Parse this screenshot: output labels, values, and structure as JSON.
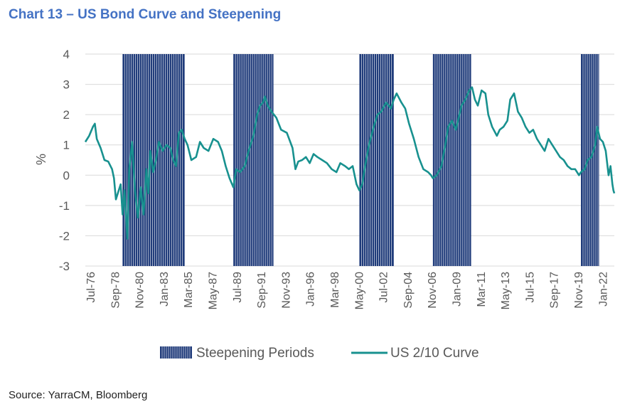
{
  "title": "Chart 13 – US Bond Curve and Steepening",
  "source": "Source: YarraCM, Bloomberg",
  "chart_data": {
    "type": "line",
    "ylabel": "%",
    "ylim": [
      -3,
      4
    ],
    "yticks": [
      "4",
      "3",
      "2",
      "1",
      "0",
      "-1",
      "-2",
      "-3"
    ],
    "x_tick_labels": [
      "Jul-76",
      "Sep-78",
      "Nov-80",
      "Jan-83",
      "Mar-85",
      "May-87",
      "Jul-89",
      "Sep-91",
      "Nov-93",
      "Jan-96",
      "Mar-98",
      "May-00",
      "Jul-02",
      "Sep-04",
      "Nov-06",
      "Jan-09",
      "Mar-11",
      "May-13",
      "Jul-15",
      "Sep-17",
      "Nov-19",
      "Jan-22"
    ],
    "x_range": [
      "1976-07",
      "2022-09"
    ],
    "grid": true,
    "legend_position": "bottom",
    "colors": {
      "line": "#18918f",
      "bars": "#1f3b7a",
      "title": "#4472c4"
    },
    "series": [
      {
        "name": "Steepening Periods",
        "type": "shaded-periods",
        "periods": [
          [
            "1979-10",
            "1985-03"
          ],
          [
            "1989-06",
            "1992-12"
          ],
          [
            "2000-06",
            "2003-06"
          ],
          [
            "2006-11",
            "2010-03"
          ],
          [
            "2019-10",
            "2021-05"
          ]
        ]
      },
      {
        "name": "US 2/10 Curve",
        "type": "line",
        "points": [
          [
            "1976-07",
            1.1
          ],
          [
            "1976-11",
            1.3
          ],
          [
            "1977-03",
            1.6
          ],
          [
            "1977-05",
            1.7
          ],
          [
            "1977-07",
            1.2
          ],
          [
            "1977-11",
            0.9
          ],
          [
            "1978-03",
            0.5
          ],
          [
            "1978-07",
            0.45
          ],
          [
            "1978-11",
            0.2
          ],
          [
            "1979-01",
            -0.1
          ],
          [
            "1979-03",
            -0.8
          ],
          [
            "1979-06",
            -0.5
          ],
          [
            "1979-08",
            -0.3
          ],
          [
            "1979-10",
            -1.3
          ],
          [
            "1979-12",
            -0.5
          ],
          [
            "1980-03",
            -2.1
          ],
          [
            "1980-05",
            0.2
          ],
          [
            "1980-08",
            1.1
          ],
          [
            "1980-11",
            -0.5
          ],
          [
            "1981-02",
            -1.4
          ],
          [
            "1981-05",
            -0.4
          ],
          [
            "1981-08",
            -1.3
          ],
          [
            "1981-11",
            0.2
          ],
          [
            "1982-01",
            -0.6
          ],
          [
            "1982-03",
            0.8
          ],
          [
            "1982-06",
            0.1
          ],
          [
            "1982-09",
            0.5
          ],
          [
            "1982-12",
            1.1
          ],
          [
            "1983-04",
            0.8
          ],
          [
            "1983-08",
            1.0
          ],
          [
            "1983-12",
            0.9
          ],
          [
            "1984-03",
            0.5
          ],
          [
            "1984-06",
            0.3
          ],
          [
            "1984-09",
            1.4
          ],
          [
            "1984-12",
            1.5
          ],
          [
            "1985-03",
            1.2
          ],
          [
            "1985-06",
            1.0
          ],
          [
            "1985-10",
            0.5
          ],
          [
            "1986-03",
            0.6
          ],
          [
            "1986-07",
            1.1
          ],
          [
            "1986-11",
            0.9
          ],
          [
            "1987-04",
            0.8
          ],
          [
            "1987-09",
            1.2
          ],
          [
            "1988-02",
            1.1
          ],
          [
            "1988-06",
            0.8
          ],
          [
            "1988-10",
            0.3
          ],
          [
            "1989-02",
            -0.1
          ],
          [
            "1989-06",
            -0.4
          ],
          [
            "1989-09",
            0.2
          ],
          [
            "1990-01",
            0.1
          ],
          [
            "1990-06",
            0.3
          ],
          [
            "1990-10",
            0.8
          ],
          [
            "1991-03",
            1.3
          ],
          [
            "1991-07",
            2.0
          ],
          [
            "1991-10",
            2.3
          ],
          [
            "1992-01",
            2.4
          ],
          [
            "1992-03",
            2.6
          ],
          [
            "1992-06",
            2.3
          ],
          [
            "1992-10",
            2.1
          ],
          [
            "1993-03",
            1.9
          ],
          [
            "1993-08",
            1.5
          ],
          [
            "1994-02",
            1.4
          ],
          [
            "1994-08",
            0.9
          ],
          [
            "1994-11",
            0.2
          ],
          [
            "1995-02",
            0.45
          ],
          [
            "1995-06",
            0.5
          ],
          [
            "1995-10",
            0.6
          ],
          [
            "1996-02",
            0.4
          ],
          [
            "1996-06",
            0.7
          ],
          [
            "1996-10",
            0.6
          ],
          [
            "1997-03",
            0.5
          ],
          [
            "1997-08",
            0.4
          ],
          [
            "1998-01",
            0.2
          ],
          [
            "1998-06",
            0.1
          ],
          [
            "1998-10",
            0.4
          ],
          [
            "1999-03",
            0.3
          ],
          [
            "1999-07",
            0.2
          ],
          [
            "1999-11",
            0.3
          ],
          [
            "2000-03",
            -0.3
          ],
          [
            "2000-06",
            -0.5
          ],
          [
            "2000-09",
            -0.3
          ],
          [
            "2000-12",
            0.3
          ],
          [
            "2001-04",
            1.0
          ],
          [
            "2001-09",
            1.6
          ],
          [
            "2002-01",
            2.0
          ],
          [
            "2002-05",
            2.1
          ],
          [
            "2002-10",
            2.4
          ],
          [
            "2003-03",
            2.2
          ],
          [
            "2003-06",
            2.5
          ],
          [
            "2003-09",
            2.7
          ],
          [
            "2004-02",
            2.4
          ],
          [
            "2004-06",
            2.2
          ],
          [
            "2004-10",
            1.7
          ],
          [
            "2005-03",
            1.2
          ],
          [
            "2005-08",
            0.6
          ],
          [
            "2006-01",
            0.2
          ],
          [
            "2006-06",
            0.1
          ],
          [
            "2006-09",
            0.0
          ],
          [
            "2006-11",
            -0.1
          ],
          [
            "2007-03",
            0.0
          ],
          [
            "2007-08",
            0.3
          ],
          [
            "2007-12",
            1.0
          ],
          [
            "2008-03",
            1.6
          ],
          [
            "2008-07",
            1.8
          ],
          [
            "2008-11",
            1.5
          ],
          [
            "2009-02",
            1.9
          ],
          [
            "2009-05",
            2.3
          ],
          [
            "2009-09",
            2.5
          ],
          [
            "2010-01",
            2.8
          ],
          [
            "2010-04",
            2.9
          ],
          [
            "2010-07",
            2.5
          ],
          [
            "2010-10",
            2.3
          ],
          [
            "2011-02",
            2.8
          ],
          [
            "2011-06",
            2.7
          ],
          [
            "2011-09",
            2.0
          ],
          [
            "2012-01",
            1.6
          ],
          [
            "2012-06",
            1.3
          ],
          [
            "2012-09",
            1.5
          ],
          [
            "2013-01",
            1.6
          ],
          [
            "2013-05",
            1.8
          ],
          [
            "2013-08",
            2.5
          ],
          [
            "2013-12",
            2.7
          ],
          [
            "2014-04",
            2.1
          ],
          [
            "2014-08",
            1.9
          ],
          [
            "2014-12",
            1.6
          ],
          [
            "2015-04",
            1.4
          ],
          [
            "2015-08",
            1.5
          ],
          [
            "2015-12",
            1.2
          ],
          [
            "2016-04",
            1.0
          ],
          [
            "2016-08",
            0.8
          ],
          [
            "2016-12",
            1.2
          ],
          [
            "2017-04",
            1.0
          ],
          [
            "2017-08",
            0.8
          ],
          [
            "2017-12",
            0.6
          ],
          [
            "2018-04",
            0.5
          ],
          [
            "2018-08",
            0.3
          ],
          [
            "2018-12",
            0.2
          ],
          [
            "2019-04",
            0.2
          ],
          [
            "2019-08",
            0.0
          ],
          [
            "2019-10",
            0.1
          ],
          [
            "2020-02",
            0.2
          ],
          [
            "2020-05",
            0.5
          ],
          [
            "2020-09",
            0.6
          ],
          [
            "2021-01",
            1.0
          ],
          [
            "2021-03",
            1.6
          ],
          [
            "2021-06",
            1.2
          ],
          [
            "2021-09",
            1.1
          ],
          [
            "2021-12",
            0.8
          ],
          [
            "2022-03",
            0.0
          ],
          [
            "2022-05",
            0.3
          ],
          [
            "2022-07",
            -0.3
          ],
          [
            "2022-08",
            -0.5
          ],
          [
            "2022-09",
            -0.6
          ]
        ]
      }
    ]
  }
}
